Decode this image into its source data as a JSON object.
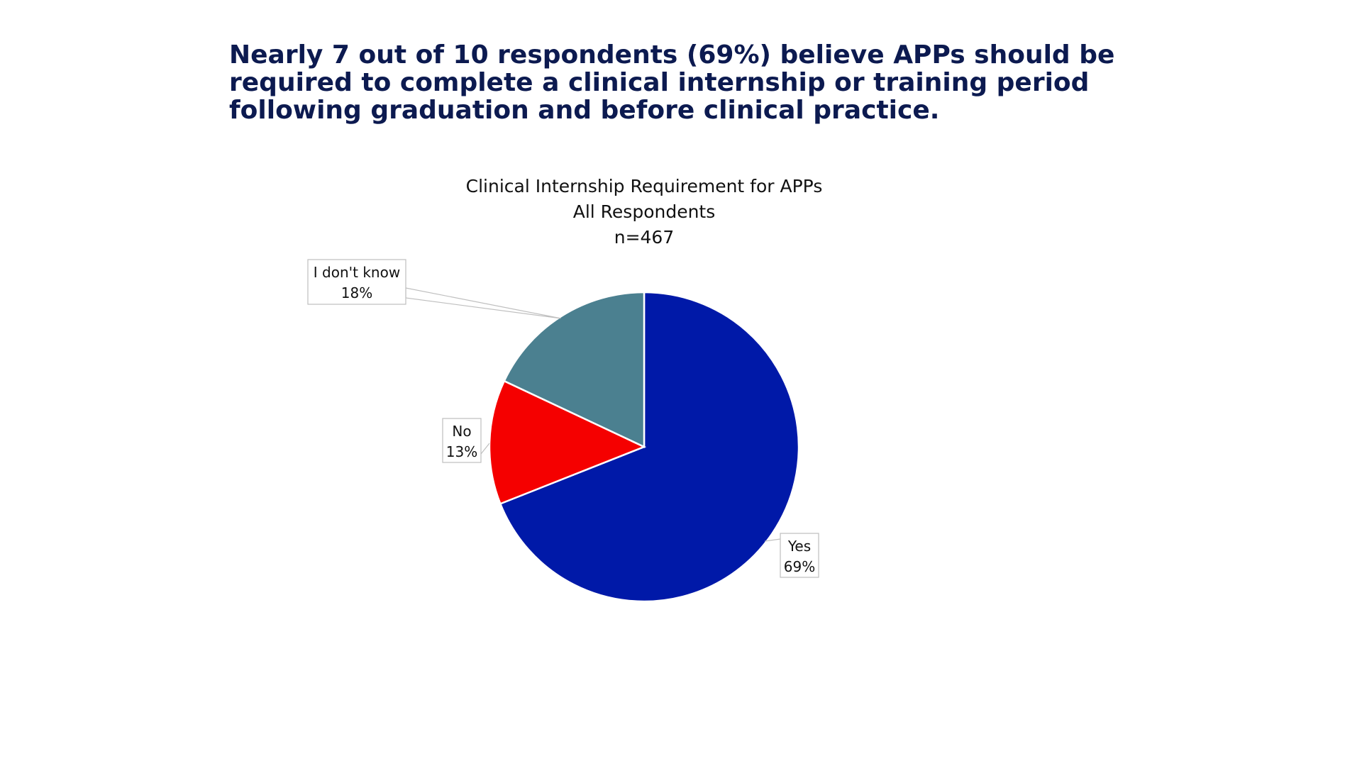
{
  "headline": {
    "lines": [
      "Nearly 7 out of 10 respondents (69%) believe APPs should be",
      "required to complete a clinical internship or training period",
      "following graduation and before clinical practice."
    ]
  },
  "chart_data": {
    "type": "pie",
    "title": "Clinical Internship Requirement for APPs",
    "subtitle": "All Respondents",
    "sample_size": "n=467",
    "slices": [
      {
        "label": "Yes",
        "value": 69,
        "value_label": "69%",
        "color": "#0019a8"
      },
      {
        "label": "No",
        "value": 13,
        "value_label": "13%",
        "color": "#f50000"
      },
      {
        "label": "I don't know",
        "value": 18,
        "value_label": "18%",
        "color": "#4b8090"
      }
    ],
    "start": "12 o'clock",
    "direction": "clockwise",
    "data_labels": "callout boxes with leader lines",
    "legend": "none"
  }
}
